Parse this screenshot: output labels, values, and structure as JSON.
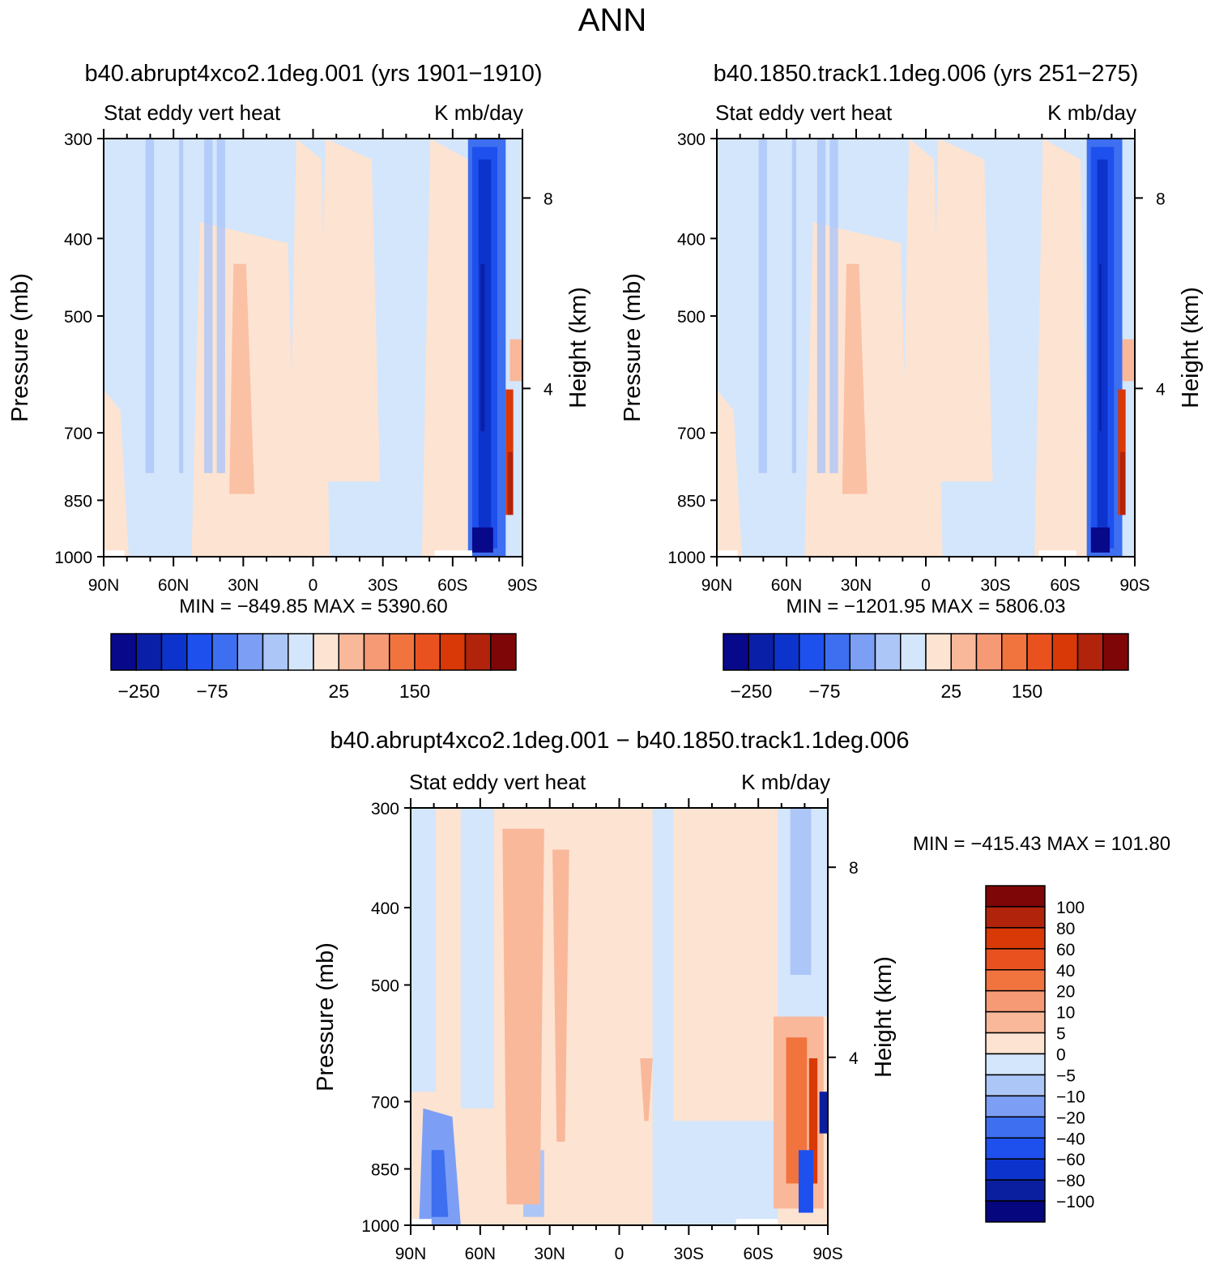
{
  "figure": {
    "title": "ANN"
  },
  "colors": {
    "abs_palette": [
      "#08088a",
      "#0a1fa8",
      "#0c34cc",
      "#1e50ee",
      "#3d6ff0",
      "#7c9ff5",
      "#adc6f8",
      "#d3e6fc",
      "#fde3d2",
      "#f9b89a",
      "#f69a76",
      "#f1743f",
      "#e9521f",
      "#d93807",
      "#b1230b",
      "#7e0606"
    ],
    "diff_palette": [
      "#06067e",
      "#0a1fa0",
      "#0c34cc",
      "#1e50ee",
      "#3d6ff0",
      "#7c9ff5",
      "#adc6f8",
      "#d3e6fc",
      "#fde3d2",
      "#f9b89a",
      "#f69a76",
      "#f1743f",
      "#e9521f",
      "#d93807",
      "#b1230b",
      "#7e0606"
    ]
  },
  "chart_data": [
    {
      "type": "heatmap",
      "title": "b40.abrupt4xco2.1deg.001 (yrs 1901−1910)",
      "left_subtitle": "Stat eddy vert heat",
      "right_subtitle": "K mb/day",
      "xlabel": "",
      "ylabel": "Pressure (mb)",
      "ylabel_right": "Height (km)",
      "x_ticks": [
        "90N",
        "60N",
        "30N",
        "0",
        "30S",
        "60S",
        "90S"
      ],
      "y_ticks": [
        "300",
        "400",
        "500",
        "700",
        "850",
        "1000"
      ],
      "y_ticks_right": [
        "8",
        "4"
      ],
      "min_max_label": "MIN = −849.85   MAX = 5390.60",
      "stats": {
        "min": -849.85,
        "max": 5390.6
      },
      "colorbar_labels": [
        "−250",
        "−75",
        "25",
        "150"
      ],
      "scale": "absolute"
    },
    {
      "type": "heatmap",
      "title": "b40.1850.track1.1deg.006 (yrs 251−275)",
      "left_subtitle": "Stat eddy vert heat",
      "right_subtitle": "K mb/day",
      "xlabel": "",
      "ylabel": "Pressure (mb)",
      "ylabel_right": "Height (km)",
      "x_ticks": [
        "90N",
        "60N",
        "30N",
        "0",
        "30S",
        "60S",
        "90S"
      ],
      "y_ticks": [
        "300",
        "400",
        "500",
        "700",
        "850",
        "1000"
      ],
      "y_ticks_right": [
        "8",
        "4"
      ],
      "min_max_label": "MIN = −1201.95   MAX = 5806.03",
      "stats": {
        "min": -1201.95,
        "max": 5806.03
      },
      "colorbar_labels": [
        "−250",
        "−75",
        "25",
        "150"
      ],
      "scale": "absolute"
    },
    {
      "type": "heatmap",
      "title": "b40.abrupt4xco2.1deg.001 − b40.1850.track1.1deg.006",
      "left_subtitle": "Stat eddy vert heat",
      "right_subtitle": "K mb/day",
      "xlabel": "",
      "ylabel": "Pressure (mb)",
      "ylabel_right": "Height (km)",
      "x_ticks": [
        "90N",
        "60N",
        "30N",
        "0",
        "30S",
        "60S",
        "90S"
      ],
      "y_ticks": [
        "300",
        "400",
        "500",
        "700",
        "850",
        "1000"
      ],
      "y_ticks_right": [
        "8",
        "4"
      ],
      "min_max_label": "MIN = −415.43   MAX = 101.80",
      "stats": {
        "min": -415.43,
        "max": 101.8
      },
      "colorbar_labels": [
        "100",
        "80",
        "60",
        "40",
        "20",
        "10",
        "5",
        "0",
        "−5",
        "−10",
        "−20",
        "−40",
        "−60",
        "−80",
        "−100"
      ],
      "scale": "difference"
    }
  ]
}
